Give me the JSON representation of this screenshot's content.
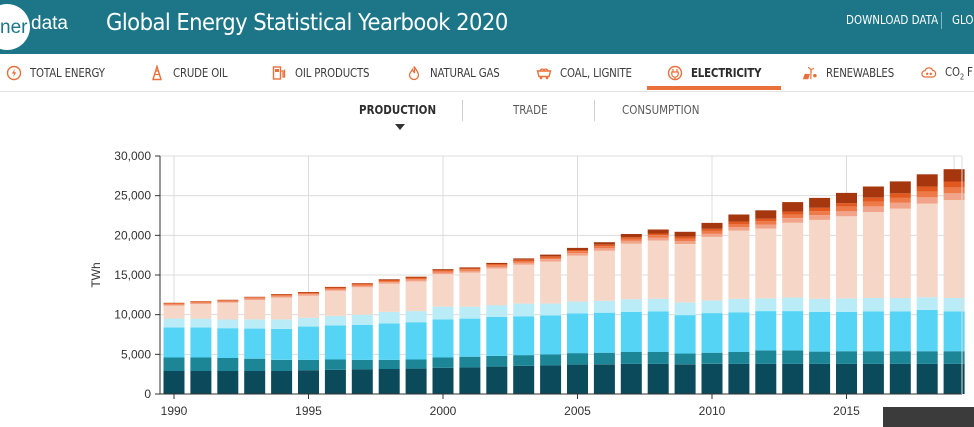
{
  "header": {
    "logo_part1": "ner",
    "logo_part2": "data",
    "title": "Global Energy Statistical Yearbook 2020",
    "download_label": "DOWNLOAD DATA",
    "glossary_label": "GLO"
  },
  "nav": {
    "items": [
      {
        "label": "TOTAL ENERGY",
        "icon": "lightning-circle-icon"
      },
      {
        "label": "CRUDE OIL",
        "icon": "oil-rig-icon"
      },
      {
        "label": "OIL PRODUCTS",
        "icon": "fuel-pump-icon"
      },
      {
        "label": "NATURAL GAS",
        "icon": "flame-icon"
      },
      {
        "label": "COAL, LIGNITE",
        "icon": "coal-wagon-icon"
      },
      {
        "label": "ELECTRICITY",
        "icon": "plug-icon",
        "active": true
      },
      {
        "label": "RENEWABLES",
        "icon": "wind-solar-icon"
      },
      {
        "label": "CO2 F",
        "icon": "co2-cloud-icon"
      }
    ],
    "co2_main": "CO",
    "co2_sub": "2",
    "co2_rest": " F"
  },
  "subtabs": [
    {
      "label": "PRODUCTION",
      "active": true
    },
    {
      "label": "TRADE",
      "active": false
    },
    {
      "label": "CONSUMPTION",
      "active": false
    }
  ],
  "colors": {
    "header_bg": "#1d7688",
    "accent": "#e8703a",
    "icon_orange": "#e8703a"
  },
  "chart_data": {
    "type": "bar",
    "stacked": true,
    "ylabel": "TWh",
    "ylim": [
      0,
      30000
    ],
    "yticks": [
      0,
      5000,
      10000,
      15000,
      20000,
      25000,
      30000
    ],
    "ytick_labels": [
      "0",
      "5,000",
      "10,000",
      "15,000",
      "20,000",
      "25,000",
      "30,000"
    ],
    "xtick_labels": [
      "1990",
      "1995",
      "2000",
      "2005",
      "2010",
      "2015"
    ],
    "xlim": [
      1990,
      2019
    ],
    "grid": true,
    "categories": [
      "1990",
      "1991",
      "1992",
      "1993",
      "1994",
      "1995",
      "1996",
      "1997",
      "1998",
      "1999",
      "2000",
      "2001",
      "2002",
      "2003",
      "2004",
      "2005",
      "2006",
      "2007",
      "2008",
      "2009",
      "2010",
      "2011",
      "2012",
      "2013",
      "2014",
      "2015",
      "2016",
      "2017",
      "2018",
      "2019"
    ],
    "series": [
      {
        "color": "#0b4a5a",
        "values": [
          2900,
          2900,
          2900,
          2900,
          2900,
          3000,
          3050,
          3100,
          3150,
          3200,
          3300,
          3350,
          3450,
          3550,
          3600,
          3700,
          3750,
          3800,
          3800,
          3750,
          3800,
          3800,
          3800,
          3800,
          3800,
          3800,
          3800,
          3800,
          3800,
          3800
        ]
      },
      {
        "color": "#1c8697",
        "values": [
          1700,
          1700,
          1650,
          1550,
          1400,
          1300,
          1300,
          1200,
          1150,
          1150,
          1300,
          1350,
          1350,
          1350,
          1400,
          1450,
          1450,
          1500,
          1500,
          1350,
          1400,
          1500,
          1700,
          1700,
          1550,
          1600,
          1600,
          1600,
          1600,
          1600
        ]
      },
      {
        "color": "#56d4f5",
        "values": [
          3800,
          3800,
          3750,
          3800,
          3900,
          4200,
          4300,
          4400,
          4600,
          4700,
          4800,
          4800,
          4900,
          4900,
          4900,
          5000,
          5050,
          5050,
          5100,
          4850,
          5000,
          5000,
          4950,
          4950,
          5000,
          4950,
          5000,
          5000,
          5200,
          5000
        ]
      },
      {
        "color": "#b9ecf7",
        "values": [
          1100,
          1100,
          1100,
          1150,
          1200,
          1100,
          1200,
          1300,
          1450,
          1400,
          1600,
          1500,
          1500,
          1600,
          1500,
          1500,
          1500,
          1600,
          1600,
          1600,
          1600,
          1700,
          1600,
          1700,
          1650,
          1700,
          1700,
          1700,
          1600,
          1700
        ]
      },
      {
        "color": "#f6d6c6",
        "values": [
          1650,
          1850,
          2100,
          2450,
          2750,
          2800,
          3150,
          3450,
          3550,
          3750,
          4100,
          4300,
          4600,
          4900,
          5300,
          5800,
          6300,
          7000,
          7350,
          7350,
          8000,
          8600,
          8800,
          9450,
          9950,
          10350,
          10850,
          11250,
          11800,
          12350
        ]
      },
      {
        "color": "#f1a48a",
        "values": [
          120,
          120,
          130,
          140,
          150,
          160,
          170,
          180,
          190,
          200,
          210,
          220,
          240,
          260,
          280,
          300,
          320,
          340,
          360,
          380,
          400,
          450,
          500,
          550,
          600,
          650,
          700,
          750,
          800,
          850
        ]
      },
      {
        "color": "#ee7a4a",
        "values": [
          120,
          120,
          120,
          130,
          140,
          140,
          150,
          160,
          160,
          170,
          180,
          190,
          200,
          210,
          220,
          240,
          260,
          280,
          300,
          320,
          350,
          380,
          420,
          460,
          500,
          540,
          580,
          620,
          680,
          740
        ]
      },
      {
        "color": "#e2581e",
        "values": [
          80,
          80,
          90,
          90,
          100,
          100,
          110,
          110,
          120,
          120,
          130,
          130,
          140,
          150,
          160,
          170,
          180,
          200,
          220,
          240,
          270,
          300,
          340,
          380,
          420,
          460,
          520,
          580,
          660,
          740
        ]
      },
      {
        "color": "#a5360d",
        "values": [
          30,
          30,
          40,
          40,
          50,
          60,
          70,
          80,
          90,
          100,
          110,
          120,
          140,
          170,
          210,
          260,
          320,
          400,
          500,
          600,
          750,
          900,
          1050,
          1200,
          1250,
          1300,
          1400,
          1500,
          1550,
          1550
        ]
      }
    ]
  }
}
